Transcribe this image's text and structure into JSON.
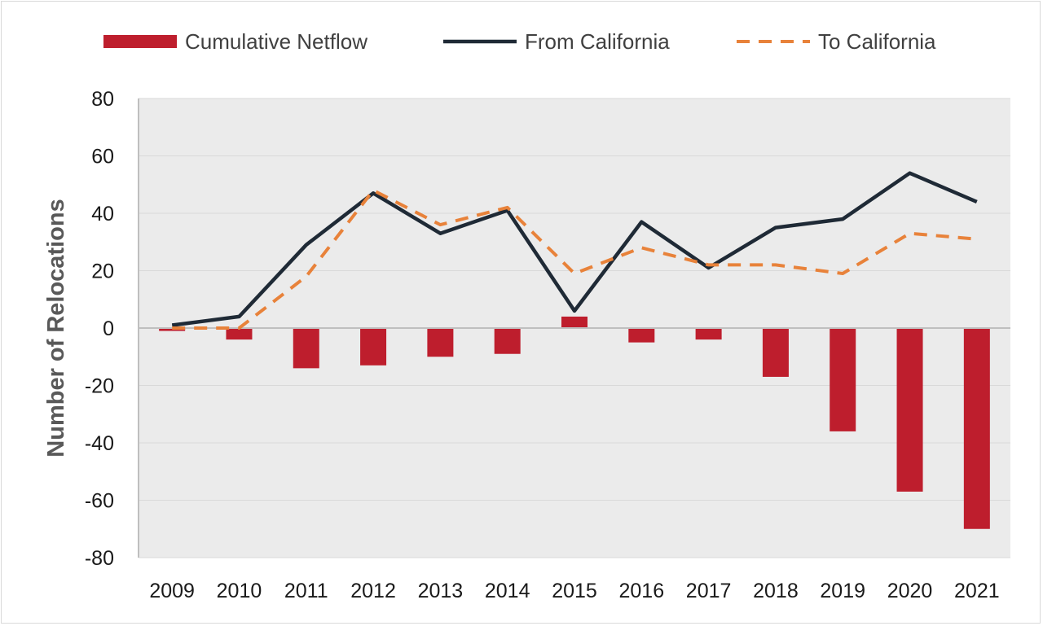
{
  "chart_data": {
    "type": "bar",
    "title": "",
    "xlabel": "",
    "ylabel": "Number of Relocations",
    "ylim": [
      -80,
      80
    ],
    "yticks": [
      80,
      60,
      40,
      20,
      0,
      -20,
      -40,
      -60,
      -80
    ],
    "grid": true,
    "legend_position": "top",
    "categories": [
      "2009",
      "2010",
      "2011",
      "2012",
      "2013",
      "2014",
      "2015",
      "2016",
      "2017",
      "2018",
      "2019",
      "2020",
      "2021"
    ],
    "series": [
      {
        "name": "Cumulative Netflow",
        "kind": "bar",
        "color": "#be1e2d",
        "values": [
          -1,
          -4,
          -14,
          -13,
          -10,
          -9,
          4,
          -5,
          -4,
          -17,
          -36,
          -57,
          -70
        ]
      },
      {
        "name": "From California",
        "kind": "line",
        "style": "solid",
        "color": "#1f2a36",
        "values": [
          1,
          4,
          29,
          47,
          33,
          41,
          6,
          37,
          21,
          35,
          38,
          54,
          44
        ]
      },
      {
        "name": "To California",
        "kind": "line",
        "style": "dashed",
        "color": "#e8823a",
        "values": [
          0,
          0,
          18,
          48,
          36,
          42,
          19,
          28,
          22,
          22,
          19,
          33,
          31
        ]
      }
    ],
    "colors": {
      "plot_background": "#ebebeb",
      "gridline": "#d9d9d9",
      "axis_line": "#bfbfbf"
    }
  }
}
